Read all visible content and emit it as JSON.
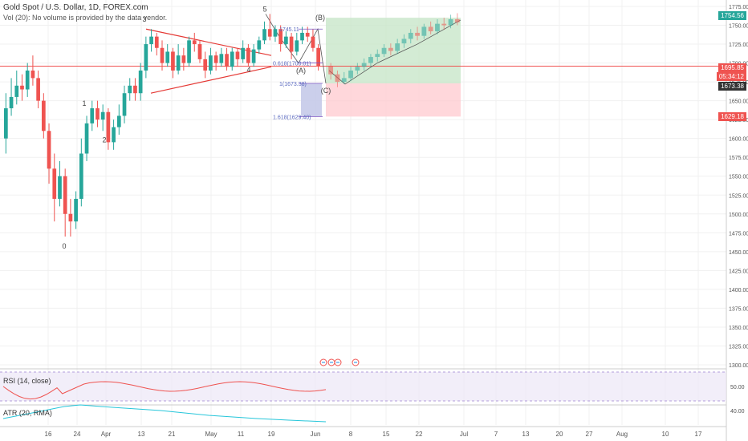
{
  "header": {
    "symbol_line": "Gold Spot / U.S. Dollar, 1D, FOREX.com",
    "volume_note": "Vol (20): No volume is provided by the data vendor."
  },
  "wave_labels": [
    "0",
    "1",
    "2",
    "3",
    "4",
    "5",
    "(A)",
    "(B)",
    "(C)"
  ],
  "fib_labels": {
    "level_745": "1745.11",
    "level_0618": "0.618(1700.01)",
    "level_1": "1(1673.38)",
    "level_1618": "1.618(1629.40)"
  },
  "price_labels": {
    "last": "1754.56",
    "red_line": "1695.85",
    "countdown": "05:34:12",
    "stop": "1673.38",
    "target": "1629.18"
  },
  "colors": {
    "up": "#26a69a",
    "down": "#ef5350",
    "rsi": "#ef5350",
    "atr": "#26c6da",
    "grid": "#f0f0f0"
  },
  "chart_data": {
    "type": "candlestick",
    "price_axis": {
      "min": 1300,
      "max": 1775,
      "ticks": [
        "1775.00",
        "1750.00",
        "1725.00",
        "1700.00",
        "1675.00",
        "1650.00",
        "1625.00",
        "1600.00",
        "1575.00",
        "1550.00",
        "1525.00",
        "1500.00",
        "1475.00",
        "1450.00",
        "1425.00",
        "1400.00",
        "1375.00",
        "1350.00",
        "1325.00",
        "1300.00"
      ]
    },
    "time_axis": [
      "16",
      "24",
      "Apr",
      "13",
      "21",
      "May",
      "11",
      "19",
      "Jun",
      "8",
      "15",
      "22",
      "Jul",
      "7",
      "13",
      "20",
      "27",
      "Aug",
      "10",
      "17"
    ],
    "rsi_axis": [
      "50.00"
    ],
    "atr_axis": [
      "40.00"
    ],
    "rsi_title": "RSI (14, close)",
    "atr_title": "ATR (20, RMA)",
    "candles": [
      {
        "o": 1600,
        "c": 1640,
        "h": 1660,
        "l": 1580
      },
      {
        "o": 1640,
        "c": 1655,
        "h": 1680,
        "l": 1630
      },
      {
        "o": 1655,
        "c": 1670,
        "h": 1690,
        "l": 1645
      },
      {
        "o": 1670,
        "c": 1665,
        "h": 1685,
        "l": 1650
      },
      {
        "o": 1665,
        "c": 1690,
        "h": 1700,
        "l": 1655
      },
      {
        "o": 1690,
        "c": 1680,
        "h": 1710,
        "l": 1670
      },
      {
        "o": 1680,
        "c": 1650,
        "h": 1690,
        "l": 1640
      },
      {
        "o": 1650,
        "c": 1610,
        "h": 1660,
        "l": 1600
      },
      {
        "o": 1610,
        "c": 1560,
        "h": 1620,
        "l": 1540
      },
      {
        "o": 1560,
        "c": 1520,
        "h": 1580,
        "l": 1490
      },
      {
        "o": 1520,
        "c": 1550,
        "h": 1570,
        "l": 1510
      },
      {
        "o": 1550,
        "c": 1500,
        "h": 1560,
        "l": 1470
      },
      {
        "o": 1500,
        "c": 1490,
        "h": 1520,
        "l": 1470
      },
      {
        "o": 1490,
        "c": 1520,
        "h": 1530,
        "l": 1480
      },
      {
        "o": 1520,
        "c": 1580,
        "h": 1600,
        "l": 1510
      },
      {
        "o": 1580,
        "c": 1620,
        "h": 1630,
        "l": 1570
      },
      {
        "o": 1620,
        "c": 1640,
        "h": 1650,
        "l": 1610
      },
      {
        "o": 1640,
        "c": 1625,
        "h": 1650,
        "l": 1615
      },
      {
        "o": 1625,
        "c": 1635,
        "h": 1645,
        "l": 1610
      },
      {
        "o": 1635,
        "c": 1595,
        "h": 1640,
        "l": 1585
      },
      {
        "o": 1595,
        "c": 1615,
        "h": 1625,
        "l": 1585
      },
      {
        "o": 1615,
        "c": 1630,
        "h": 1645,
        "l": 1605
      },
      {
        "o": 1630,
        "c": 1660,
        "h": 1670,
        "l": 1620
      },
      {
        "o": 1660,
        "c": 1670,
        "h": 1680,
        "l": 1650
      },
      {
        "o": 1670,
        "c": 1660,
        "h": 1680,
        "l": 1650
      },
      {
        "o": 1660,
        "c": 1690,
        "h": 1700,
        "l": 1650
      },
      {
        "o": 1690,
        "c": 1725,
        "h": 1735,
        "l": 1680
      },
      {
        "o": 1725,
        "c": 1735,
        "h": 1745,
        "l": 1715
      },
      {
        "o": 1735,
        "c": 1720,
        "h": 1740,
        "l": 1710
      },
      {
        "o": 1720,
        "c": 1700,
        "h": 1730,
        "l": 1690
      },
      {
        "o": 1700,
        "c": 1715,
        "h": 1725,
        "l": 1695
      },
      {
        "o": 1715,
        "c": 1690,
        "h": 1720,
        "l": 1680
      },
      {
        "o": 1690,
        "c": 1710,
        "h": 1725,
        "l": 1685
      },
      {
        "o": 1710,
        "c": 1700,
        "h": 1720,
        "l": 1690
      },
      {
        "o": 1700,
        "c": 1730,
        "h": 1735,
        "l": 1695
      },
      {
        "o": 1730,
        "c": 1725,
        "h": 1740,
        "l": 1715
      },
      {
        "o": 1725,
        "c": 1705,
        "h": 1730,
        "l": 1700
      },
      {
        "o": 1705,
        "c": 1690,
        "h": 1715,
        "l": 1680
      },
      {
        "o": 1690,
        "c": 1710,
        "h": 1720,
        "l": 1685
      },
      {
        "o": 1710,
        "c": 1700,
        "h": 1715,
        "l": 1690
      },
      {
        "o": 1700,
        "c": 1712,
        "h": 1720,
        "l": 1695
      },
      {
        "o": 1712,
        "c": 1695,
        "h": 1720,
        "l": 1690
      },
      {
        "o": 1695,
        "c": 1715,
        "h": 1720,
        "l": 1690
      },
      {
        "o": 1715,
        "c": 1705,
        "h": 1720,
        "l": 1695
      },
      {
        "o": 1705,
        "c": 1720,
        "h": 1730,
        "l": 1700
      },
      {
        "o": 1720,
        "c": 1700,
        "h": 1725,
        "l": 1695
      },
      {
        "o": 1700,
        "c": 1718,
        "h": 1725,
        "l": 1695
      },
      {
        "o": 1718,
        "c": 1730,
        "h": 1735,
        "l": 1712
      },
      {
        "o": 1730,
        "c": 1745,
        "h": 1755,
        "l": 1725
      },
      {
        "o": 1745,
        "c": 1735,
        "h": 1765,
        "l": 1730
      },
      {
        "o": 1735,
        "c": 1745,
        "h": 1750,
        "l": 1728
      },
      {
        "o": 1745,
        "c": 1725,
        "h": 1750,
        "l": 1715
      },
      {
        "o": 1725,
        "c": 1735,
        "h": 1742,
        "l": 1720
      },
      {
        "o": 1735,
        "c": 1715,
        "h": 1740,
        "l": 1705
      },
      {
        "o": 1715,
        "c": 1730,
        "h": 1740,
        "l": 1710
      },
      {
        "o": 1730,
        "c": 1740,
        "h": 1748,
        "l": 1725
      },
      {
        "o": 1740,
        "c": 1735,
        "h": 1748,
        "l": 1728
      },
      {
        "o": 1735,
        "c": 1720,
        "h": 1745,
        "l": 1715
      },
      {
        "o": 1720,
        "c": 1696,
        "h": 1725,
        "l": 1690
      }
    ],
    "projection": [
      {
        "o": 1696,
        "c": 1685,
        "h": 1700,
        "l": 1678
      },
      {
        "o": 1685,
        "c": 1675,
        "h": 1690,
        "l": 1668
      },
      {
        "o": 1675,
        "c": 1680,
        "h": 1688,
        "l": 1672
      },
      {
        "o": 1680,
        "c": 1690,
        "h": 1695,
        "l": 1676
      },
      {
        "o": 1690,
        "c": 1695,
        "h": 1700,
        "l": 1685
      },
      {
        "o": 1695,
        "c": 1700,
        "h": 1706,
        "l": 1690
      },
      {
        "o": 1700,
        "c": 1708,
        "h": 1712,
        "l": 1694
      },
      {
        "o": 1708,
        "c": 1712,
        "h": 1718,
        "l": 1702
      },
      {
        "o": 1712,
        "c": 1720,
        "h": 1725,
        "l": 1708
      },
      {
        "o": 1720,
        "c": 1716,
        "h": 1726,
        "l": 1710
      },
      {
        "o": 1716,
        "c": 1726,
        "h": 1732,
        "l": 1712
      },
      {
        "o": 1726,
        "c": 1732,
        "h": 1738,
        "l": 1720
      },
      {
        "o": 1732,
        "c": 1740,
        "h": 1745,
        "l": 1726
      },
      {
        "o": 1740,
        "c": 1736,
        "h": 1748,
        "l": 1730
      },
      {
        "o": 1736,
        "c": 1748,
        "h": 1752,
        "l": 1732
      },
      {
        "o": 1748,
        "c": 1742,
        "h": 1755,
        "l": 1738
      },
      {
        "o": 1742,
        "c": 1752,
        "h": 1758,
        "l": 1738
      },
      {
        "o": 1752,
        "c": 1750,
        "h": 1760,
        "l": 1744
      },
      {
        "o": 1750,
        "c": 1758,
        "h": 1764,
        "l": 1746
      },
      {
        "o": 1758,
        "c": 1754,
        "h": 1766,
        "l": 1750
      }
    ]
  }
}
